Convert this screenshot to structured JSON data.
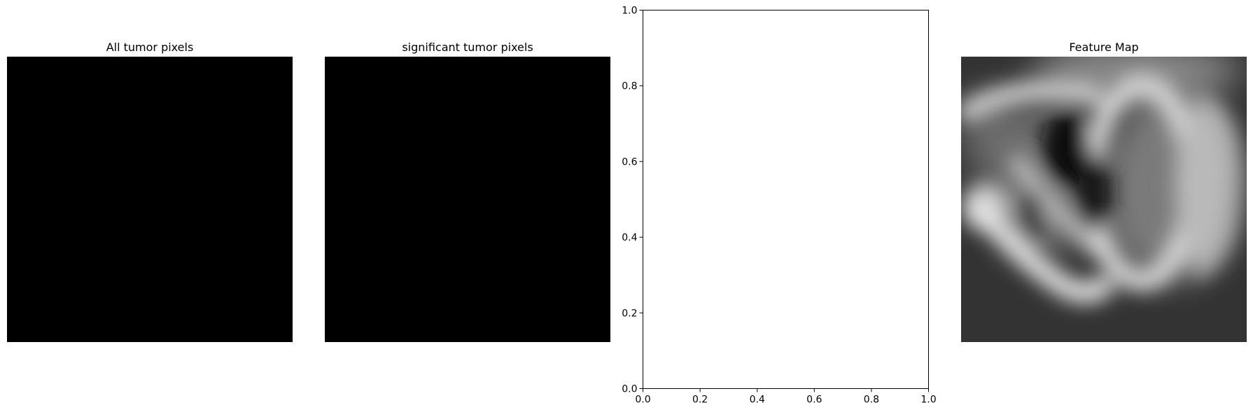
{
  "chart_data": [
    {
      "type": "heatmap",
      "title": "All tumor pixels",
      "colormap": "gray",
      "content": "all-zero (uniform black)",
      "axes_visible": false
    },
    {
      "type": "heatmap",
      "title": "significant tumor pixels",
      "colormap": "gray",
      "content": "all-zero (uniform black)",
      "axes_visible": false
    },
    {
      "type": "scatter",
      "title": "",
      "xlabel": "",
      "ylabel": "",
      "xlim": [
        0.0,
        1.0
      ],
      "ylim": [
        0.0,
        1.0
      ],
      "x_ticks": [
        "0.0",
        "0.2",
        "0.4",
        "0.6",
        "0.8",
        "1.0"
      ],
      "y_ticks": [
        "0.0",
        "0.2",
        "0.4",
        "0.6",
        "0.8",
        "1.0"
      ],
      "series": [],
      "grid": false
    },
    {
      "type": "heatmap",
      "title": "Feature Map",
      "colormap": "gray",
      "content": "blurred grayscale feature activation map",
      "axes_visible": false
    }
  ],
  "colors": {
    "background": "#ffffff",
    "image_black": "#000000",
    "axis": "#000000"
  }
}
